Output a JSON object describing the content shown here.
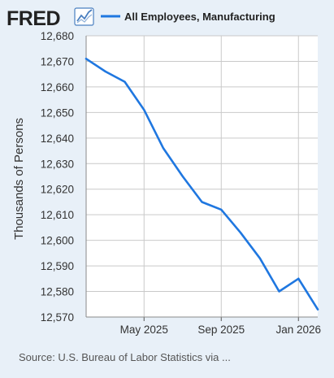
{
  "branding": {
    "logo_text": "FRED"
  },
  "footer": {
    "source": "Source: U.S. Bureau of Labor Statistics via ..."
  },
  "colors": {
    "background": "#e8f0f8",
    "plot_background": "#ffffff",
    "grid": "#c9c9c9",
    "series_line": "#1f77e0"
  },
  "chart_data": {
    "type": "line",
    "title": "",
    "xlabel": "",
    "ylabel": "Thousands of Persons",
    "ylim": [
      12570,
      12680
    ],
    "yticks": [
      12570,
      12580,
      12590,
      12600,
      12610,
      12620,
      12630,
      12640,
      12650,
      12660,
      12670,
      12680
    ],
    "ytick_labels": [
      "12,570",
      "12,580",
      "12,590",
      "12,600",
      "12,610",
      "12,620",
      "12,630",
      "12,640",
      "12,650",
      "12,660",
      "12,670",
      "12,680"
    ],
    "xlim": [
      "2025-02",
      "2026-02"
    ],
    "xticks": [
      "2025-05",
      "2025-09",
      "2026-01"
    ],
    "xtick_labels": [
      "May 2025",
      "Sep 2025",
      "Jan 2026"
    ],
    "grid": true,
    "legend": "top",
    "series": [
      {
        "name": "All Employees, Manufacturing",
        "x": [
          "2025-02",
          "2025-03",
          "2025-04",
          "2025-05",
          "2025-06",
          "2025-07",
          "2025-08",
          "2025-09",
          "2025-10",
          "2025-11",
          "2025-12",
          "2026-01",
          "2026-02"
        ],
        "values": [
          12671,
          12666,
          12662,
          12651,
          12636,
          12625,
          12615,
          12612,
          12603,
          12593,
          12580,
          12585,
          12573
        ]
      }
    ]
  }
}
